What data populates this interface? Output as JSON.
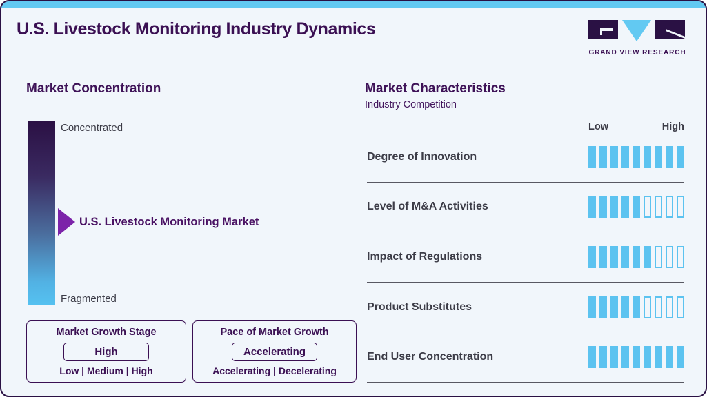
{
  "header": {
    "title": "U.S. Livestock Monitoring Industry Dynamics",
    "brand": "GRAND VIEW RESEARCH"
  },
  "market_concentration": {
    "heading": "Market Concentration",
    "scale_top_label": "Concentrated",
    "scale_bottom_label": "Fragmented",
    "pointer_label": "U.S. Livestock Monitoring Market",
    "growth_stage_box": {
      "title": "Market Growth Stage",
      "value": "High",
      "options": "Low | Medium | High"
    },
    "pace_box": {
      "title": "Pace of Market Growth",
      "value": "Accelerating",
      "options": "Accelerating | Decelerating"
    }
  },
  "market_characteristics": {
    "heading": "Market Characteristics",
    "subheading": "Industry Competition",
    "scale_low_label": "Low",
    "scale_high_label": "High",
    "rows": [
      {
        "label": "Degree of Innovation",
        "filled": 9,
        "total": 9
      },
      {
        "label": "Level of M&A Activities",
        "filled": 5,
        "total": 9
      },
      {
        "label": "Impact of Regulations",
        "filled": 6,
        "total": 9
      },
      {
        "label": "Product Substitutes",
        "filled": 5,
        "total": 9
      },
      {
        "label": "End User Concentration",
        "filled": 9,
        "total": 9
      }
    ]
  },
  "chart_data": [
    {
      "type": "bar",
      "title": "Market Characteristics - Industry Competition",
      "categories": [
        "Degree of Innovation",
        "Level of M&A Activities",
        "Impact of Regulations",
        "Product Substitutes",
        "End User Concentration"
      ],
      "values": [
        9,
        5,
        6,
        5,
        9
      ],
      "value_scale": {
        "segments": 9,
        "min_label": "Low",
        "max_label": "High"
      },
      "legend_position": "none",
      "grid": false
    },
    {
      "type": "scatter",
      "title": "Market Concentration",
      "axis": {
        "top_label": "Concentrated",
        "bottom_label": "Fragmented"
      },
      "marker_label": "U.S. Livestock Monitoring Market",
      "marker_position_from_top_pct": 55
    }
  ],
  "colors": {
    "accent_blue": "#5cc3f0",
    "brand_purple": "#3b1053",
    "arrow_purple": "#7c23a9",
    "gradient_top": "#2b1044",
    "gradient_bottom": "#55c1f0",
    "background": "#f1f6fb",
    "label_dark": "#3c3c47"
  }
}
